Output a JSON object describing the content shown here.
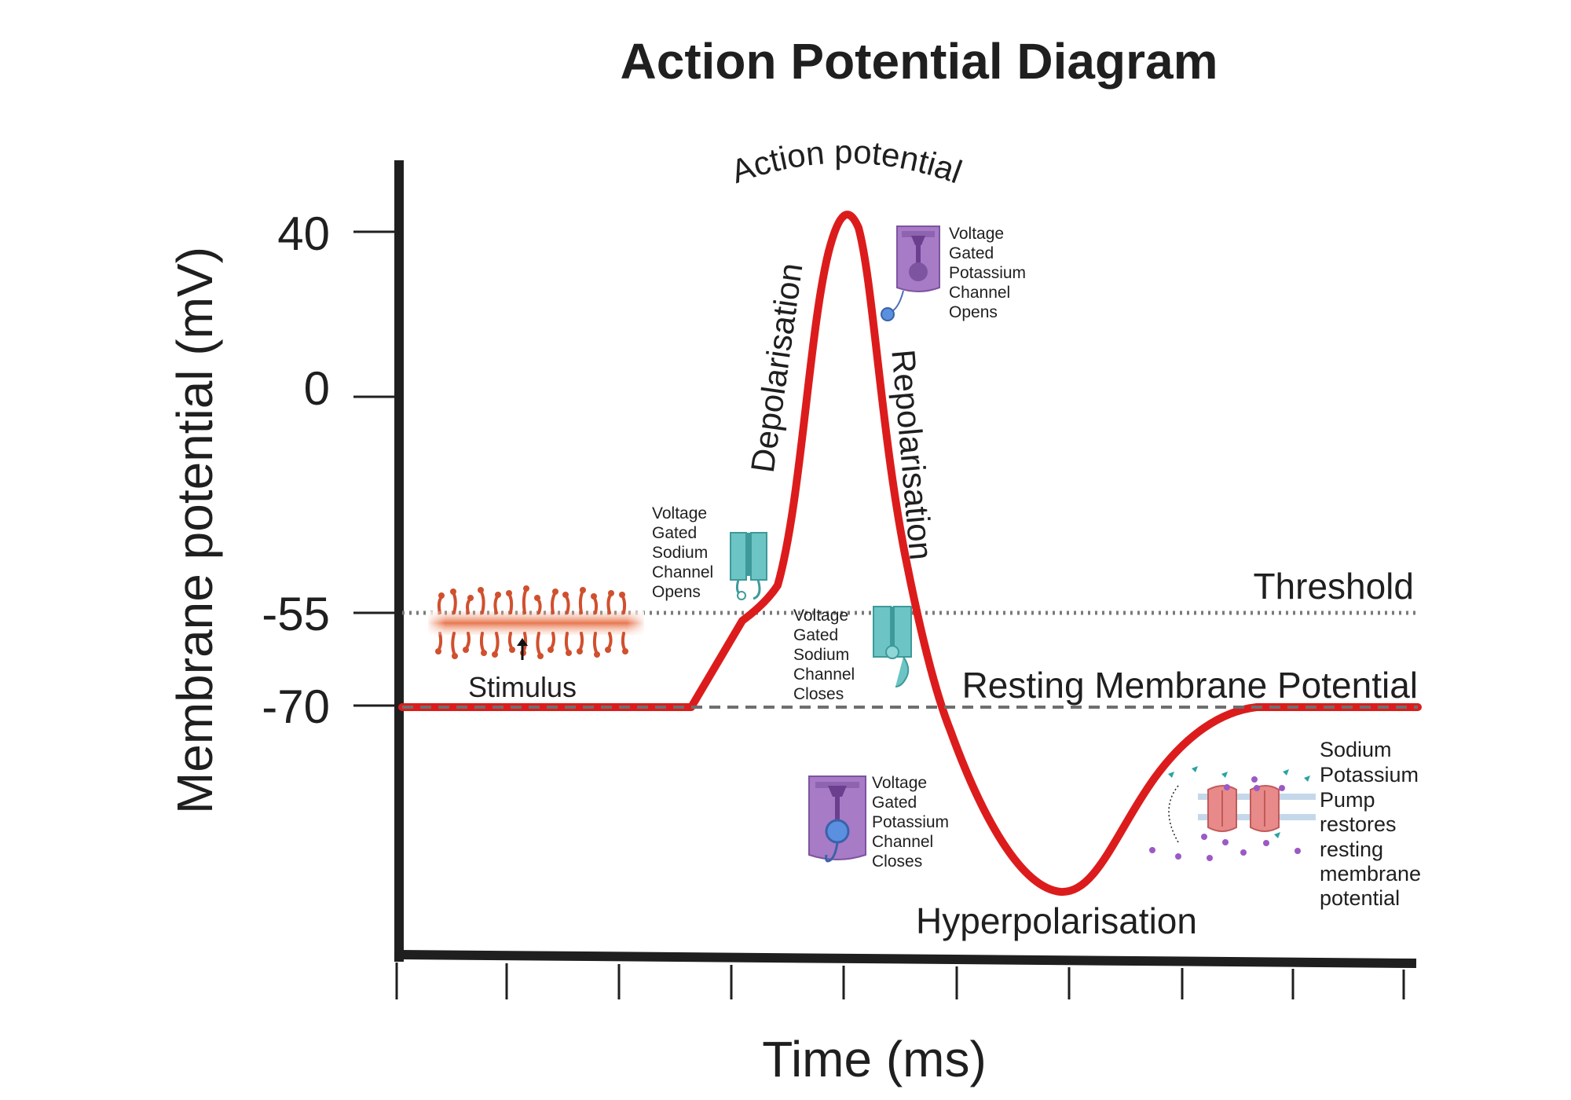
{
  "title": "Action Potential Diagram",
  "y_axis_title": "Membrane potential (mV)",
  "x_axis_title": "Time (ms)",
  "y_ticks": [
    "40",
    "0",
    "-55",
    "-70"
  ],
  "phases": {
    "action_potential": "Action potential",
    "depolarisation": "Depolarisation",
    "repolarisation": "Repolarisation",
    "hyperpolarisation": "Hyperpolarisation",
    "stimulus": "Stimulus"
  },
  "reference_lines": {
    "threshold": "Threshold",
    "resting": "Resting Membrane Potential"
  },
  "annotations": {
    "na_open": [
      "Voltage",
      "Gated",
      "Sodium",
      "Channel",
      "Opens"
    ],
    "na_close": [
      "Voltage",
      "Gated",
      "Sodium",
      "Channel",
      "Closes"
    ],
    "k_open": [
      "Voltage",
      "Gated",
      "Potassium",
      "Channel",
      "Opens"
    ],
    "k_close": [
      "Voltage",
      "Gated",
      "Potassium",
      "Channel",
      "Closes"
    ],
    "pump": [
      "Sodium",
      "Potassium",
      "Pump",
      "restores",
      "resting",
      "membrane",
      "potential"
    ]
  },
  "colors": {
    "trace": "#dc1c1c",
    "axis": "#1f1f1f",
    "threshold_line": "#7a7a7a",
    "resting_line": "#6e6e6e",
    "sodium_channel": "#6cc4c4",
    "potassium_channel": "#a87bc7",
    "pump": "#e88a8a",
    "neuron": "#e0603c"
  },
  "icons": [
    "neuron-stimulus-icon",
    "sodium-channel-open-icon",
    "sodium-channel-closed-icon",
    "potassium-channel-open-icon",
    "potassium-channel-closed-icon",
    "sodium-potassium-pump-icon"
  ]
}
